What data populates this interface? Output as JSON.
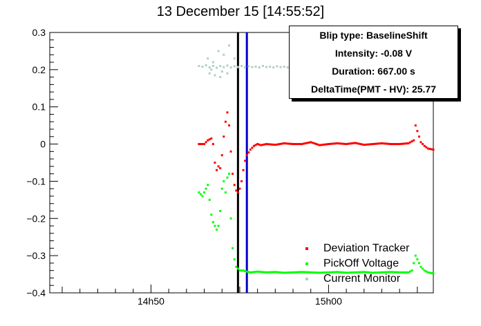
{
  "title": "13 December 15 [14:55:52]",
  "info_box": {
    "lines": [
      "Blip type: BaselineShift",
      "Intensity: -0.08 V",
      "Duration: 667.00 s",
      "DeltaTime(PMT - HV): 25.77"
    ]
  },
  "legend": [
    {
      "label": "Deviation Tracker",
      "color": "#ff0000"
    },
    {
      "label": "PickOff Voltage",
      "color": "#00ff00"
    },
    {
      "label": "Current Monitor",
      "color": "#b0d0c0"
    }
  ],
  "chart_data": {
    "type": "scatter",
    "title": "13 December 15 [14:55:52]",
    "xlabel": "",
    "ylabel": "",
    "x_unit": "minutes after 14:00",
    "xlim": [
      44.3,
      65.9
    ],
    "ylim": [
      -0.4,
      0.3
    ],
    "x_ticks": [
      {
        "value": 50,
        "label": "14h50"
      },
      {
        "value": 60,
        "label": "15h00"
      }
    ],
    "y_ticks": [
      {
        "value": 0.3,
        "label": "0.3"
      },
      {
        "value": 0.2,
        "label": "0.2"
      },
      {
        "value": 0.1,
        "label": "0.1"
      },
      {
        "value": 0,
        "label": "0"
      },
      {
        "value": -0.1,
        "label": "−0.1"
      },
      {
        "value": -0.2,
        "label": "−0.2"
      },
      {
        "value": -0.3,
        "label": "−0.3"
      },
      {
        "value": -0.4,
        "label": "−0.4"
      }
    ],
    "markers": [
      {
        "x": 54.9,
        "color": "#000000"
      },
      {
        "x": 55.4,
        "color": "#0000cc"
      }
    ],
    "series": [
      {
        "name": "Deviation Tracker",
        "color": "#ff0000",
        "x": [
          52.7,
          53.0,
          53.2,
          53.4,
          53.5,
          53.6,
          53.7,
          53.8,
          53.9,
          54.0,
          54.1,
          54.2,
          54.3,
          54.4,
          54.5,
          54.6,
          54.7,
          54.8,
          54.9,
          55.0,
          55.1,
          55.2,
          55.3,
          55.4,
          55.6,
          55.8,
          56.0,
          56.2,
          56.5,
          57.0,
          57.5,
          58.0,
          58.5,
          59.0,
          59.5,
          60.0,
          60.5,
          61.0,
          61.5,
          62.0,
          62.5,
          63.0,
          63.5,
          64.0,
          64.5,
          64.8,
          64.9,
          65.0,
          65.1,
          65.2,
          65.4,
          65.6,
          65.9
        ],
        "y": [
          0.0,
          0.0,
          0.01,
          0.015,
          0.0,
          -0.05,
          -0.07,
          -0.06,
          -0.065,
          -0.03,
          0.02,
          0.06,
          0.085,
          0.05,
          -0.02,
          -0.08,
          -0.11,
          -0.125,
          -0.13,
          -0.12,
          -0.1,
          -0.07,
          -0.045,
          -0.03,
          -0.015,
          -0.005,
          0.0,
          -0.003,
          0.0,
          -0.002,
          0.002,
          0.0,
          0.0,
          0.005,
          -0.003,
          0.0,
          0.002,
          0.0,
          0.003,
          -0.002,
          0.0,
          0.002,
          0.0,
          0.0,
          0.002,
          0.01,
          0.05,
          0.035,
          0.02,
          0.005,
          -0.005,
          -0.012,
          -0.015
        ]
      },
      {
        "name": "PickOff Voltage",
        "color": "#00ff00",
        "x": [
          52.7,
          52.9,
          53.1,
          53.2,
          53.3,
          53.4,
          53.5,
          53.6,
          53.7,
          53.8,
          53.9,
          54.0,
          54.1,
          54.2,
          54.3,
          54.4,
          54.5,
          54.6,
          54.7,
          54.8,
          54.9,
          55.0,
          55.2,
          55.4,
          55.6,
          56.0,
          56.5,
          57.0,
          57.5,
          58.0,
          58.5,
          59.0,
          59.5,
          60.0,
          60.5,
          61.0,
          61.5,
          62.0,
          62.5,
          63.0,
          63.5,
          64.0,
          64.5,
          64.7,
          64.8,
          64.9,
          65.0,
          65.1,
          65.2,
          65.4,
          65.6,
          65.9
        ],
        "y": [
          -0.13,
          -0.14,
          -0.12,
          -0.11,
          -0.15,
          -0.19,
          -0.21,
          -0.22,
          -0.23,
          -0.22,
          -0.18,
          -0.12,
          -0.1,
          -0.13,
          -0.09,
          -0.08,
          -0.2,
          -0.28,
          -0.31,
          -0.33,
          -0.335,
          -0.34,
          -0.34,
          -0.343,
          -0.345,
          -0.343,
          -0.345,
          -0.344,
          -0.346,
          -0.345,
          -0.344,
          -0.345,
          -0.346,
          -0.345,
          -0.344,
          -0.346,
          -0.345,
          -0.344,
          -0.346,
          -0.345,
          -0.344,
          -0.345,
          -0.345,
          -0.34,
          -0.32,
          -0.3,
          -0.31,
          -0.32,
          -0.33,
          -0.34,
          -0.345,
          -0.348
        ]
      },
      {
        "name": "Current Monitor",
        "color": "#b0d0c0",
        "x": [
          52.7,
          52.9,
          53.1,
          53.3,
          53.5,
          53.7,
          53.9,
          54.1,
          54.3,
          54.5,
          54.7,
          54.9,
          55.1,
          55.3,
          55.5,
          55.7,
          55.9,
          56.1,
          56.3,
          56.5,
          56.7,
          56.9,
          57.1,
          57.3,
          57.5,
          57.7,
          57.9,
          58.1,
          58.3,
          58.5,
          58.7,
          53.2,
          53.5,
          53.8,
          54.1,
          54.4,
          54.7,
          53.3,
          53.6,
          54.0,
          54.3,
          53.4,
          53.9
        ],
        "y": [
          0.21,
          0.208,
          0.212,
          0.206,
          0.21,
          0.205,
          0.21,
          0.207,
          0.211,
          0.206,
          0.209,
          0.207,
          0.21,
          0.206,
          0.209,
          0.207,
          0.208,
          0.206,
          0.21,
          0.207,
          0.208,
          0.206,
          0.209,
          0.207,
          0.208,
          0.206,
          0.209,
          0.207,
          0.208,
          0.206,
          0.209,
          0.23,
          0.22,
          0.25,
          0.24,
          0.265,
          0.23,
          0.19,
          0.185,
          0.195,
          0.19,
          0.2,
          0.18
        ]
      }
    ]
  }
}
